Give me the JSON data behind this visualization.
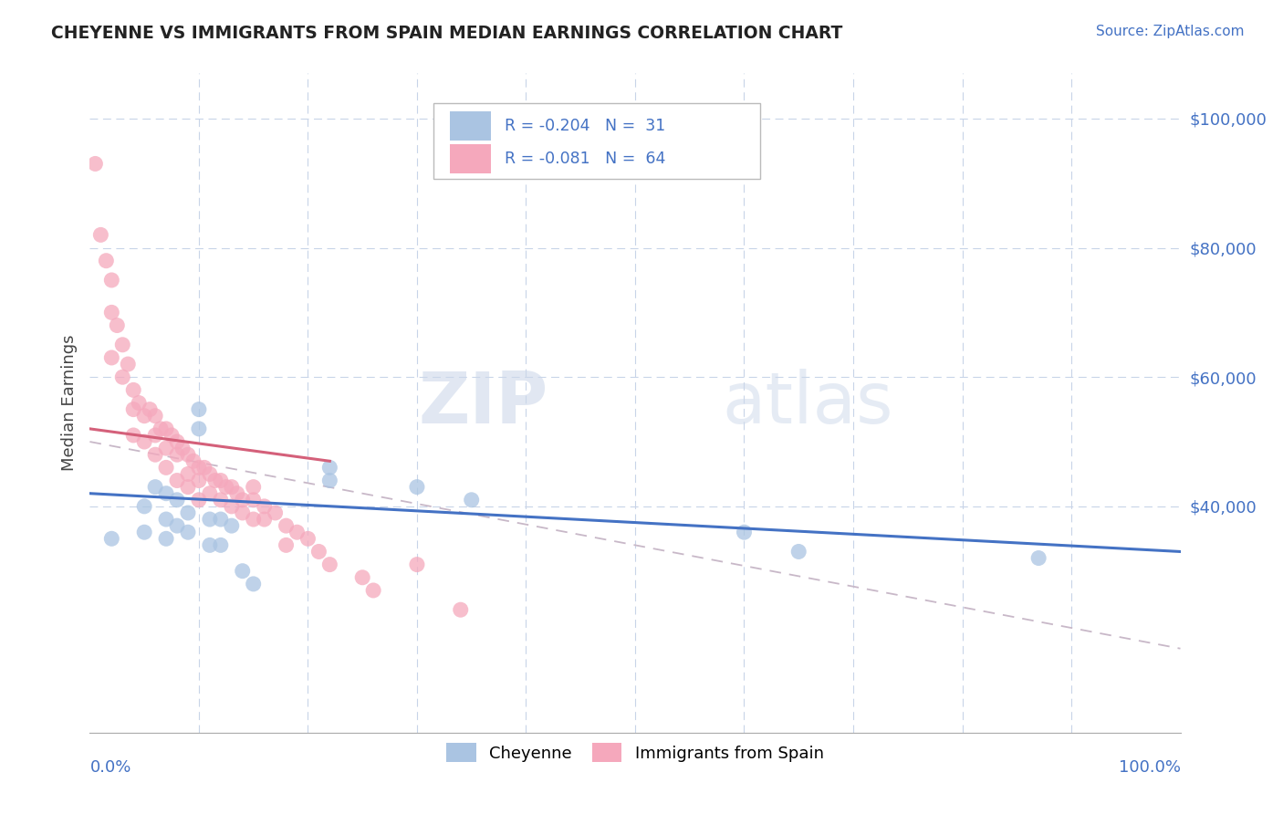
{
  "title": "CHEYENNE VS IMMIGRANTS FROM SPAIN MEDIAN EARNINGS CORRELATION CHART",
  "source": "Source: ZipAtlas.com",
  "ylabel": "Median Earnings",
  "legend_cheyenne": "Cheyenne",
  "legend_immigrants": "Immigrants from Spain",
  "watermark_zip": "ZIP",
  "watermark_atlas": "atlas",
  "cheyenne_color": "#aac4e2",
  "immigrants_color": "#f5a8bc",
  "cheyenne_line_color": "#4472c4",
  "immigrants_line_color": "#d4607a",
  "dashed_line_color": "#c8b8c8",
  "title_color": "#222222",
  "axis_color": "#4472c4",
  "ylabel_color": "#444444",
  "ylim": [
    5000,
    107000
  ],
  "xlim": [
    0.0,
    1.0
  ],
  "yticks": [
    40000,
    60000,
    80000,
    100000
  ],
  "ytick_labels": [
    "$40,000",
    "$60,000",
    "$80,000",
    "$100,000"
  ],
  "cheyenne_x": [
    0.02,
    0.05,
    0.05,
    0.06,
    0.07,
    0.07,
    0.07,
    0.08,
    0.08,
    0.09,
    0.09,
    0.1,
    0.1,
    0.11,
    0.11,
    0.12,
    0.12,
    0.13,
    0.14,
    0.15,
    0.22,
    0.22,
    0.3,
    0.35,
    0.6,
    0.65,
    0.87
  ],
  "cheyenne_y": [
    35000,
    40000,
    36000,
    43000,
    42000,
    38000,
    35000,
    41000,
    37000,
    39000,
    36000,
    55000,
    52000,
    38000,
    34000,
    38000,
    34000,
    37000,
    30000,
    28000,
    46000,
    44000,
    43000,
    41000,
    36000,
    33000,
    32000
  ],
  "immigrants_x": [
    0.005,
    0.01,
    0.015,
    0.02,
    0.02,
    0.02,
    0.025,
    0.03,
    0.03,
    0.035,
    0.04,
    0.04,
    0.04,
    0.045,
    0.05,
    0.05,
    0.055,
    0.06,
    0.06,
    0.06,
    0.065,
    0.07,
    0.07,
    0.07,
    0.075,
    0.08,
    0.08,
    0.08,
    0.085,
    0.09,
    0.09,
    0.09,
    0.095,
    0.1,
    0.1,
    0.1,
    0.105,
    0.11,
    0.11,
    0.115,
    0.12,
    0.12,
    0.125,
    0.13,
    0.13,
    0.135,
    0.14,
    0.14,
    0.15,
    0.15,
    0.15,
    0.16,
    0.16,
    0.17,
    0.18,
    0.18,
    0.19,
    0.2,
    0.21,
    0.22,
    0.25,
    0.26,
    0.3,
    0.34
  ],
  "immigrants_y": [
    93000,
    82000,
    78000,
    75000,
    70000,
    63000,
    68000,
    65000,
    60000,
    62000,
    58000,
    55000,
    51000,
    56000,
    54000,
    50000,
    55000,
    54000,
    51000,
    48000,
    52000,
    52000,
    49000,
    46000,
    51000,
    50000,
    48000,
    44000,
    49000,
    48000,
    45000,
    43000,
    47000,
    46000,
    44000,
    41000,
    46000,
    45000,
    42000,
    44000,
    44000,
    41000,
    43000,
    43000,
    40000,
    42000,
    41000,
    39000,
    43000,
    41000,
    38000,
    40000,
    38000,
    39000,
    37000,
    34000,
    36000,
    35000,
    33000,
    31000,
    29000,
    27000,
    31000,
    24000
  ],
  "chey_trend_x0": 0.0,
  "chey_trend_x1": 1.0,
  "chey_trend_y0": 42000,
  "chey_trend_y1": 33000,
  "imm_trend_x0": 0.0,
  "imm_trend_x1": 0.22,
  "imm_trend_y0": 52000,
  "imm_trend_y1": 47000,
  "dash_trend_x0": 0.0,
  "dash_trend_x1": 1.0,
  "dash_trend_y0": 50000,
  "dash_trend_y1": 18000
}
